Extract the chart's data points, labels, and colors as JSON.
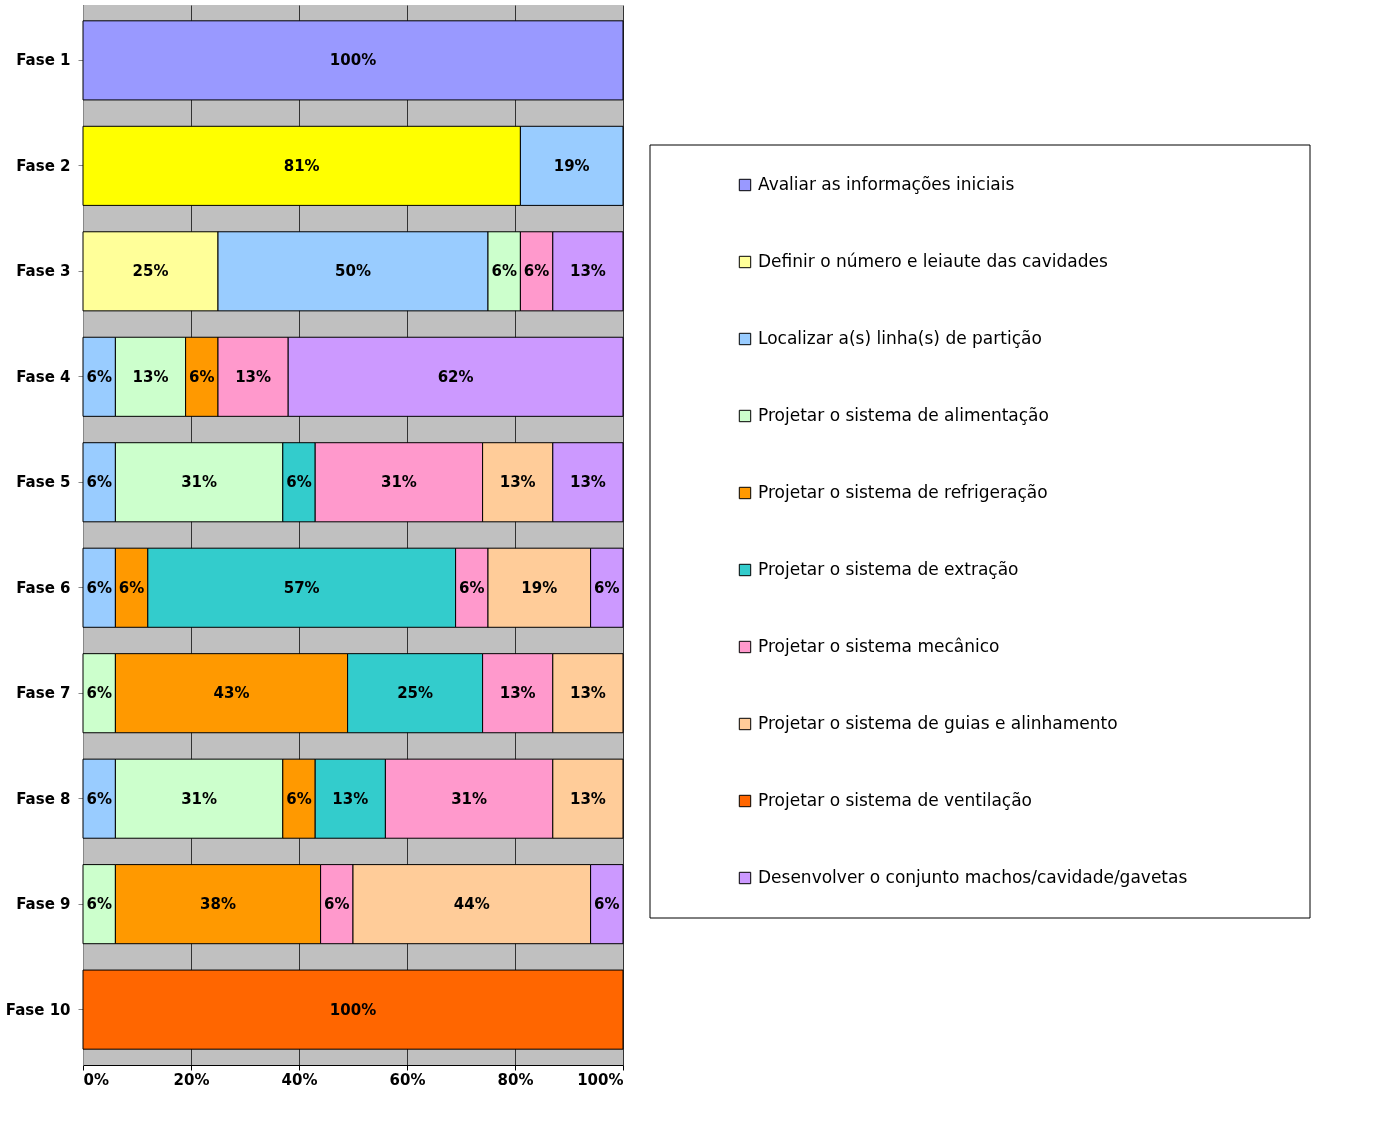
{
  "chart_data": {
    "type": "bar",
    "orientation": "horizontal",
    "stacked": true,
    "legend": "right",
    "grid": "x",
    "categories": [
      "Fase 1",
      "Fase 2",
      "Fase 3",
      "Fase 4",
      "Fase 5",
      "Fase 6",
      "Fase 7",
      "Fase 8",
      "Fase 9",
      "Fase 10"
    ],
    "xlim": [
      0,
      100
    ],
    "xticks": [
      {
        "value": 0,
        "label": "0%"
      },
      {
        "value": 20,
        "label": "20%"
      },
      {
        "value": 40,
        "label": "40%"
      },
      {
        "value": 60,
        "label": "60%"
      },
      {
        "value": 80,
        "label": "80%"
      },
      {
        "value": 100,
        "label": "100%"
      }
    ],
    "series": [
      {
        "name": "Avaliar as informações iniciais",
        "color": "#9999ff",
        "values": [
          100,
          null,
          null,
          null,
          null,
          null,
          null,
          null,
          null,
          null
        ],
        "value_labels": [
          "100%",
          null,
          null,
          null,
          null,
          null,
          null,
          null,
          null,
          null
        ]
      },
      {
        "name": "Definir o número e leiaute das cavidades",
        "color": "#ffff99",
        "colors": [
          "#ffff99",
          "#ffff00",
          "#ffff99",
          "#ffff99",
          "#ffff99",
          "#ffff99",
          "#ffff99",
          "#ffff99",
          "#ffff99",
          "#ffff99"
        ],
        "values": [
          null,
          81,
          25,
          null,
          null,
          null,
          null,
          null,
          null,
          null
        ],
        "value_labels": [
          null,
          "81%",
          "25%",
          null,
          null,
          null,
          null,
          null,
          null,
          null
        ]
      },
      {
        "name": "Localizar a(s) linha(s) de partição",
        "color": "#99ccff",
        "values": [
          null,
          19,
          50,
          6,
          6,
          6,
          null,
          6,
          null,
          null
        ],
        "value_labels": [
          null,
          "19%",
          "50%",
          "6%",
          "6%",
          "6%",
          null,
          "6%",
          null,
          null
        ]
      },
      {
        "name": "Projetar o sistema de alimentação",
        "color": "#ccffcc",
        "values": [
          null,
          null,
          6,
          13,
          31,
          null,
          6,
          31,
          6,
          null
        ],
        "value_labels": [
          null,
          null,
          "6%",
          "13%",
          "31%",
          null,
          "6%",
          "31%",
          "6%",
          null
        ]
      },
      {
        "name": "Projetar o sistema de refrigeração",
        "color": "#ff9900",
        "values": [
          null,
          null,
          null,
          6,
          null,
          6,
          43,
          6,
          38,
          null
        ],
        "value_labels": [
          null,
          null,
          null,
          "6%",
          null,
          "6%",
          "43%",
          "6%",
          "38%",
          null
        ]
      },
      {
        "name": "Projetar o sistema de extração",
        "color": "#33cccc",
        "values": [
          null,
          null,
          null,
          null,
          6,
          57,
          25,
          13,
          null,
          null
        ],
        "value_labels": [
          null,
          null,
          null,
          null,
          "6%",
          "57%",
          "25%",
          "13%",
          null,
          null
        ]
      },
      {
        "name": "Projetar o sistema mecânico",
        "color": "#ff99cc",
        "values": [
          null,
          null,
          6,
          13,
          31,
          6,
          13,
          31,
          6,
          null
        ],
        "value_labels": [
          null,
          null,
          "6%",
          "13%",
          "31%",
          "6%",
          "13%",
          "31%",
          "6%",
          null
        ]
      },
      {
        "name": "Projetar o sistema de guias e alinhamento",
        "color": "#ffcc99",
        "values": [
          null,
          null,
          null,
          null,
          13,
          19,
          13,
          13,
          44,
          null
        ],
        "value_labels": [
          null,
          null,
          null,
          null,
          "13%",
          "19%",
          "13%",
          "13%",
          "44%",
          null
        ]
      },
      {
        "name": "Projetar o sistema de ventilação",
        "color": "#ff6600",
        "values": [
          null,
          null,
          null,
          null,
          null,
          null,
          null,
          null,
          null,
          100
        ],
        "value_labels": [
          null,
          null,
          null,
          null,
          null,
          null,
          null,
          null,
          null,
          "100%"
        ]
      },
      {
        "name": "Desenvolver o conjunto machos/cavidade/gavetas",
        "color": "#cc99ff",
        "values": [
          null,
          null,
          13,
          62,
          13,
          6,
          null,
          null,
          6,
          null
        ],
        "value_labels": [
          null,
          null,
          "13%",
          "62%",
          "13%",
          "6%",
          null,
          null,
          "6%",
          null
        ]
      }
    ]
  }
}
